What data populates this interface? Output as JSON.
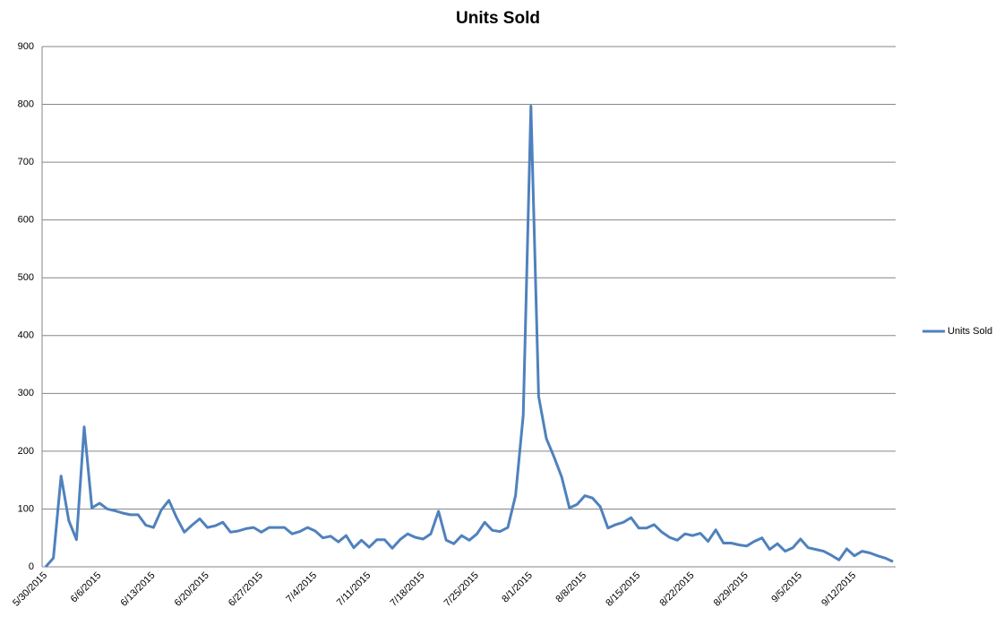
{
  "chart_data": {
    "type": "line",
    "title": "Units Sold",
    "categories": [
      "5/30/2015",
      null,
      null,
      null,
      null,
      null,
      null,
      "6/6/2015",
      null,
      null,
      null,
      null,
      null,
      null,
      "6/13/2015",
      null,
      null,
      null,
      null,
      null,
      null,
      "6/20/2015",
      null,
      null,
      null,
      null,
      null,
      null,
      "6/27/2015",
      null,
      null,
      null,
      null,
      null,
      null,
      "7/4/2015",
      null,
      null,
      null,
      null,
      null,
      null,
      "7/11/2015",
      null,
      null,
      null,
      null,
      null,
      null,
      "7/18/2015",
      null,
      null,
      null,
      null,
      null,
      null,
      "7/25/2015",
      null,
      null,
      null,
      null,
      null,
      null,
      "8/1/2015",
      null,
      null,
      null,
      null,
      null,
      null,
      "8/8/2015",
      null,
      null,
      null,
      null,
      null,
      null,
      "8/15/2015",
      null,
      null,
      null,
      null,
      null,
      null,
      "8/22/2015",
      null,
      null,
      null,
      null,
      null,
      null,
      "8/29/2015",
      null,
      null,
      null,
      null,
      null,
      null,
      "9/5/2015",
      null,
      null,
      null,
      null,
      null,
      null,
      "9/12/2015",
      null,
      null,
      null,
      null,
      null
    ],
    "series": [
      {
        "name": "Units Sold",
        "color": "#4f81bd",
        "values": [
          0,
          15,
          157,
          80,
          47,
          242,
          102,
          110,
          100,
          97,
          93,
          90,
          90,
          72,
          68,
          98,
          115,
          85,
          60,
          72,
          83,
          68,
          71,
          77,
          60,
          62,
          66,
          68,
          60,
          68,
          68,
          68,
          57,
          61,
          68,
          62,
          50,
          53,
          43,
          54,
          33,
          46,
          34,
          47,
          47,
          32,
          47,
          57,
          51,
          48,
          57,
          96,
          46,
          40,
          54,
          46,
          57,
          77,
          63,
          61,
          68,
          123,
          262,
          797,
          295,
          222,
          190,
          155,
          102,
          108,
          123,
          119,
          104,
          67,
          73,
          77,
          85,
          67,
          67,
          73,
          60,
          51,
          46,
          57,
          54,
          58,
          44,
          64,
          41,
          41,
          38,
          36,
          44,
          50,
          30,
          40,
          27,
          33,
          48,
          33,
          30,
          27,
          20,
          12,
          31,
          19,
          27,
          24,
          19,
          15,
          9
        ]
      }
    ],
    "ylim": [
      0,
      900
    ],
    "yticks": [
      0,
      100,
      200,
      300,
      400,
      500,
      600,
      700,
      800,
      900
    ],
    "grid": true,
    "legend": "right"
  }
}
